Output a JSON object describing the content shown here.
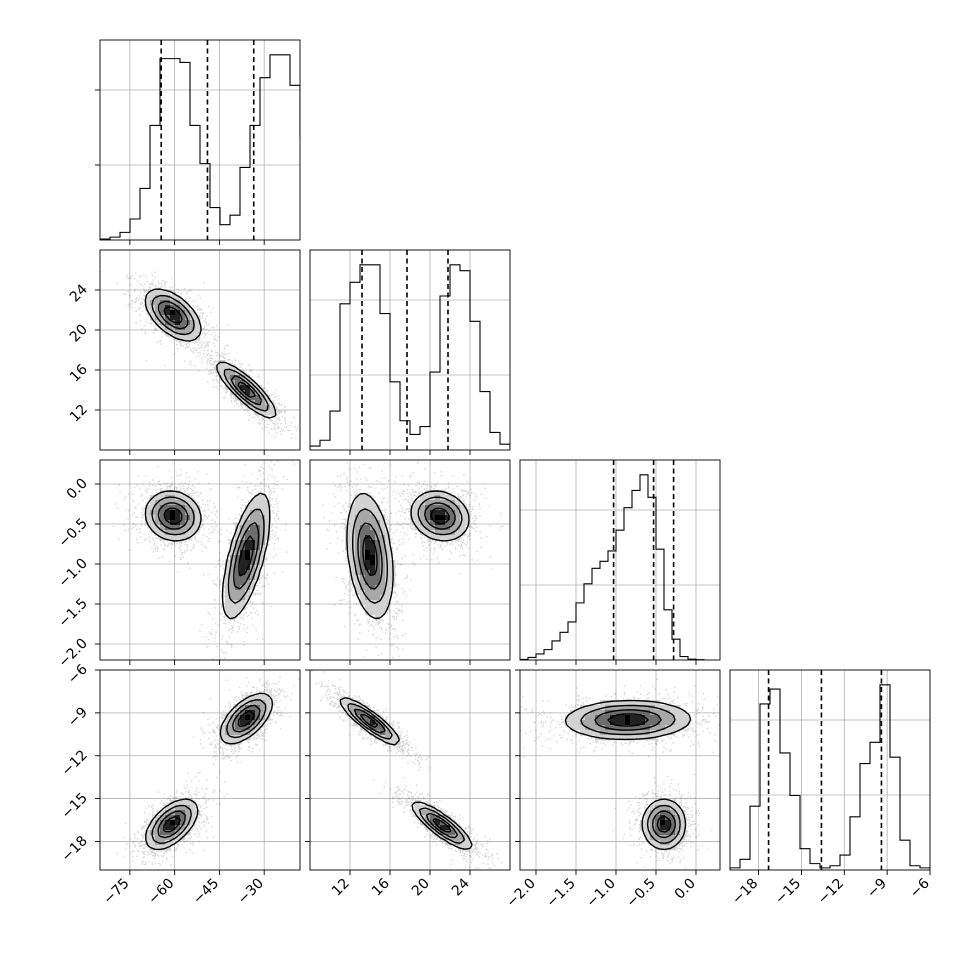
{
  "chart_data": {
    "type": "corner",
    "parameter_count": 4,
    "parameters": [
      {
        "id": "p0",
        "range": [
          -85,
          -18
        ],
        "ticks": [
          -75,
          -60,
          -45,
          -30
        ],
        "tick_labels": [
          "−75",
          "−60",
          "−45",
          "−30"
        ],
        "quantiles": [
          -64.5,
          -49.0,
          -33.5
        ],
        "modes": [
          {
            "mean": -60.5,
            "sd": 5.0,
            "weight": 0.5
          },
          {
            "mean": -36.0,
            "sd": 5.2,
            "weight": 0.5
          }
        ],
        "histogram": {
          "bin_edges_start": -85,
          "bin_width": 3.35,
          "counts": [
            0.5,
            1.5,
            4,
            11,
            27,
            60,
            95,
            95,
            93,
            60,
            40,
            17,
            8,
            13,
            38,
            60,
            85,
            97,
            97,
            81,
            54,
            22,
            6,
            1.5,
            0.3
          ]
        }
      },
      {
        "id": "p1",
        "range": [
          8,
          28
        ],
        "ticks": [
          12,
          16,
          20,
          24
        ],
        "tick_labels": [
          "12",
          "16",
          "20",
          "24"
        ],
        "quantiles": [
          13.2,
          17.7,
          21.8
        ],
        "modes": [
          {
            "mean": 13.8,
            "sd": 1.3,
            "weight": 0.5
          },
          {
            "mean": 21.2,
            "sd": 1.3,
            "weight": 0.5
          }
        ],
        "histogram": {
          "bin_edges_start": 8,
          "bin_width": 1.0,
          "counts": [
            2,
            5,
            20,
            75,
            86,
            95,
            95,
            70,
            35,
            15,
            8,
            12,
            40,
            79,
            95,
            92,
            66,
            30,
            9,
            3,
            1
          ]
        }
      },
      {
        "id": "p2",
        "range": [
          -2.2,
          0.3
        ],
        "ticks": [
          -2.0,
          -1.5,
          -1.0,
          -0.5,
          0.0
        ],
        "tick_labels": [
          "−2.0",
          "−1.5",
          "−1.0",
          "−0.5",
          "0.0"
        ],
        "quantiles": [
          -1.03,
          -0.53,
          -0.28
        ],
        "modes": [
          {
            "mean": -0.4,
            "sd": 0.15,
            "weight": 0.5
          },
          {
            "mean": -0.9,
            "sd": 0.4,
            "weight": 0.5
          }
        ],
        "histogram": {
          "bin_edges_start": -2.2,
          "bin_width": 0.1,
          "counts": [
            0.3,
            1.5,
            3.5,
            6,
            11,
            16,
            22,
            33,
            44,
            53,
            57,
            63,
            75,
            88,
            98,
            107,
            94,
            64,
            29,
            12,
            2,
            0.5,
            0.2
          ]
        }
      },
      {
        "id": "p3",
        "range": [
          -20,
          -6
        ],
        "ticks": [
          -18,
          -15,
          -12,
          -9,
          -6
        ],
        "tick_labels": [
          "−18",
          "−15",
          "−12",
          "−9",
          "−6"
        ],
        "quantiles": [
          -17.3,
          -13.6,
          -9.4
        ],
        "modes": [
          {
            "mean": -16.8,
            "sd": 0.85,
            "weight": 0.5
          },
          {
            "mean": -9.6,
            "sd": 0.85,
            "weight": 0.5
          }
        ],
        "histogram": {
          "bin_edges_start": -20,
          "bin_width": 0.7,
          "counts": [
            1,
            5,
            30,
            78,
            85,
            55,
            35,
            10,
            3,
            1,
            2,
            7,
            25,
            50,
            60,
            87,
            53,
            14,
            2,
            1
          ]
        }
      }
    ],
    "pair_modes": [
      {
        "pair": [
          0,
          1
        ],
        "modes": [
          {
            "center": [
              -60.5,
              21.5
            ],
            "sd": [
              4.5,
              1.25
            ],
            "corr": -0.55
          },
          {
            "center": [
              -36.0,
              14.0
            ],
            "sd": [
              4.8,
              1.35
            ],
            "corr": -0.85
          }
        ]
      },
      {
        "pair": [
          0,
          2
        ],
        "modes": [
          {
            "center": [
              -60.5,
              -0.4
            ],
            "sd": [
              4.5,
              0.15
            ],
            "corr": -0.1
          },
          {
            "center": [
              -36.0,
              -0.9
            ],
            "sd": [
              3.8,
              0.38
            ],
            "corr": 0.65
          }
        ]
      },
      {
        "pair": [
          1,
          2
        ],
        "modes": [
          {
            "center": [
              14.0,
              -0.9
            ],
            "sd": [
              1.1,
              0.38
            ],
            "corr": -0.3
          },
          {
            "center": [
              21.0,
              -0.4
            ],
            "sd": [
              1.4,
              0.15
            ],
            "corr": -0.15
          }
        ]
      },
      {
        "pair": [
          0,
          3
        ],
        "modes": [
          {
            "center": [
              -61.0,
              -16.8
            ],
            "sd": [
              4.2,
              0.85
            ],
            "corr": 0.55
          },
          {
            "center": [
              -36.0,
              -9.4
            ],
            "sd": [
              4.2,
              0.85
            ],
            "corr": 0.6
          }
        ]
      },
      {
        "pair": [
          1,
          3
        ],
        "modes": [
          {
            "center": [
              14.0,
              -9.6
            ],
            "sd": [
              1.45,
              0.8
            ],
            "corr": -0.88
          },
          {
            "center": [
              21.2,
              -16.9
            ],
            "sd": [
              1.45,
              0.8
            ],
            "corr": -0.85
          }
        ]
      },
      {
        "pair": [
          2,
          3
        ],
        "modes": [
          {
            "center": [
              -0.85,
              -9.5
            ],
            "sd": [
              0.38,
              0.65
            ],
            "corr": 0.05
          },
          {
            "center": [
              -0.4,
              -16.8
            ],
            "sd": [
              0.13,
              0.85
            ],
            "corr": 0.0
          }
        ]
      }
    ],
    "grid": true,
    "density_contours": true,
    "scatter_points": true
  }
}
